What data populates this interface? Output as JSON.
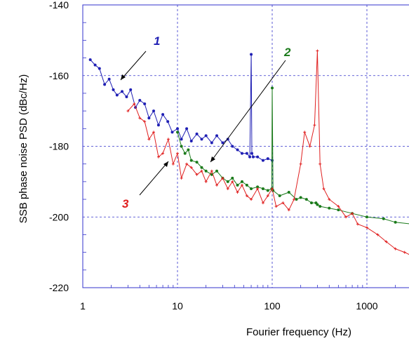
{
  "chart_data": {
    "type": "line",
    "xscale": "log",
    "xlim": [
      1,
      3000
    ],
    "ylim": [
      -220,
      -140
    ],
    "x_ticks": [
      1,
      10,
      100,
      1000
    ],
    "x_tick_labels": [
      "1",
      "10",
      "100",
      "1000"
    ],
    "y_ticks": [
      -220,
      -200,
      -180,
      -160,
      -140
    ],
    "y_tick_labels": [
      "-220",
      "-200",
      "-180",
      "-160",
      "-140"
    ],
    "xlabel": "Fourier frequency (Hz)",
    "ylabel": "SSB phase noise PSD (dBc/Hz)",
    "grid": true,
    "colors": {
      "series_1": "#1f1fb4",
      "series_2": "#1a7a1a",
      "series_3": "#e02020",
      "grid": "#3333cc"
    },
    "series": [
      {
        "name": "1",
        "color": "#1f1fb4",
        "x": [
          1.2,
          1.35,
          1.5,
          1.7,
          1.9,
          2.1,
          2.3,
          2.6,
          2.9,
          3.2,
          3.6,
          4.0,
          4.5,
          5.0,
          5.6,
          6.3,
          7.0,
          7.9,
          8.8,
          10,
          11,
          12.5,
          14,
          16,
          18,
          20,
          23,
          26,
          30,
          34,
          38,
          43,
          48,
          54,
          58,
          60,
          61,
          63,
          70,
          80,
          90,
          100
        ],
        "y": [
          -155.5,
          -157,
          -158,
          -162.5,
          -161,
          -164,
          -165.5,
          -164.5,
          -166,
          -164,
          -169,
          -167,
          -168,
          -172,
          -170,
          -174,
          -171,
          -173,
          -176,
          -175,
          -178,
          -175,
          -178.5,
          -176.5,
          -178,
          -177,
          -179,
          -177,
          -179,
          -178,
          -180,
          -181,
          -182,
          -182,
          -183,
          -154,
          -182,
          -183,
          -183,
          -184,
          -183.5,
          -184
        ]
      },
      {
        "name": "2",
        "color": "#1a7a1a",
        "x": [
          10,
          11,
          12,
          13,
          14,
          16,
          18,
          20,
          23,
          26,
          30,
          34,
          38,
          43,
          48,
          54,
          60,
          70,
          80,
          90,
          99,
          100,
          102,
          120,
          150,
          180,
          200,
          230,
          260,
          290,
          300,
          320,
          400,
          500,
          700,
          1000,
          1500,
          2000,
          3000
        ],
        "y": [
          -176,
          -180,
          -182,
          -181,
          -184,
          -184.5,
          -186,
          -187,
          -188,
          -187,
          -189,
          -190,
          -189,
          -191,
          -190,
          -191,
          -192,
          -191.5,
          -192,
          -192.5,
          -192,
          -163.5,
          -192.5,
          -194,
          -193,
          -195,
          -194.5,
          -195,
          -196,
          -196,
          -196.5,
          -197,
          -197.5,
          -198,
          -199,
          -200,
          -200.5,
          -201.5,
          -202
        ]
      },
      {
        "name": "3",
        "color": "#e02020",
        "x": [
          3.0,
          3.5,
          4.0,
          4.5,
          5.0,
          5.6,
          6.3,
          7.0,
          8.0,
          9.0,
          10,
          11,
          12.5,
          14,
          16,
          18,
          20,
          23,
          26,
          30,
          34,
          38,
          43,
          48,
          54,
          60,
          70,
          80,
          90,
          100,
          110,
          130,
          150,
          170,
          200,
          220,
          250,
          280,
          300,
          320,
          350,
          400,
          500,
          600,
          700,
          800,
          1000,
          1300,
          1600,
          2000,
          2500,
          3000
        ],
        "y": [
          -170,
          -168,
          -172,
          -173,
          -178,
          -176,
          -183,
          -182,
          -178,
          -185,
          -182,
          -189,
          -185,
          -186,
          -188,
          -187,
          -190,
          -187,
          -191,
          -189,
          -192,
          -190,
          -193,
          -191,
          -194,
          -195,
          -192,
          -196,
          -194,
          -192,
          -197,
          -196,
          -198,
          -195,
          -185,
          -176,
          -180,
          -174,
          -153,
          -185,
          -192,
          -195,
          -197,
          -200,
          -199,
          -202,
          -203,
          -205,
          -207,
          -209,
          -210,
          -211
        ]
      }
    ],
    "annotations": [
      {
        "text": "1",
        "color": "#1f1fb4"
      },
      {
        "text": "2",
        "color": "#1a7a1a"
      },
      {
        "text": "3",
        "color": "#e02020"
      }
    ]
  }
}
